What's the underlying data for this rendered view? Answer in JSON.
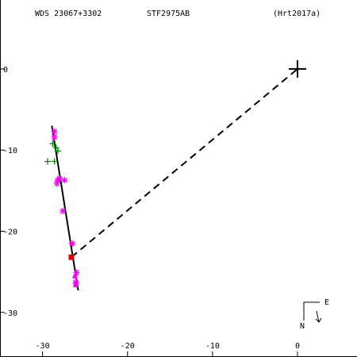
{
  "header": {
    "left": "WDS 23067+3302",
    "center": "STF2975AB",
    "right": "(Hrt2017a)"
  },
  "compass": {
    "north_label": "N",
    "east_label": "E"
  },
  "chart_data": {
    "type": "scatter",
    "xlim": [
      -35,
      7
    ],
    "ylim": [
      -35.5,
      8.5
    ],
    "x_ticks": [
      -30,
      -20,
      -10,
      0
    ],
    "y_ticks": [
      0,
      -10,
      -20,
      -30
    ],
    "x_tick_labels": [
      "-30",
      "-20",
      "-10",
      "0"
    ],
    "y_tick_labels": [
      "0",
      "-10",
      "-20",
      "-30"
    ],
    "grid": false,
    "primary": {
      "x": 0,
      "y": 0,
      "marker": "plus"
    },
    "orbit_line": {
      "points": [
        [
          -28.9,
          -7.0
        ],
        [
          -25.8,
          -27.3
        ]
      ],
      "color": "#000000"
    },
    "separation_line": {
      "from": [
        -26.6,
        -23.2
      ],
      "to": [
        0,
        0
      ],
      "style": "dashed",
      "color": "#000000"
    },
    "series": [
      {
        "marker": "star",
        "color": "#ff00ff",
        "points": [
          [
            -28.6,
            -7.7
          ],
          [
            -28.6,
            -8.4
          ],
          [
            -28.2,
            -13.7
          ],
          [
            -28.0,
            -13.5
          ],
          [
            -28.3,
            -14.1
          ],
          [
            -27.4,
            -13.7
          ],
          [
            -27.6,
            -17.5
          ],
          [
            -26.5,
            -21.5
          ],
          [
            -26.0,
            -25.1
          ],
          [
            -26.1,
            -26.3
          ]
        ]
      },
      {
        "marker": "plus",
        "color": "#008800",
        "points": [
          [
            -28.8,
            -9.2
          ],
          [
            -28.4,
            -9.7
          ],
          [
            -28.2,
            -10.1
          ],
          [
            -28.6,
            -11.4
          ],
          [
            -29.4,
            -11.4
          ]
        ]
      },
      {
        "marker": "triangle",
        "color": "#ff00ff",
        "points": [
          [
            -26.2,
            -25.5
          ],
          [
            -26.0,
            -26.1
          ],
          [
            -26.1,
            -26.6
          ]
        ]
      },
      {
        "marker": "square",
        "color": "#dd0000",
        "points": [
          [
            -26.6,
            -23.2
          ]
        ]
      }
    ]
  }
}
